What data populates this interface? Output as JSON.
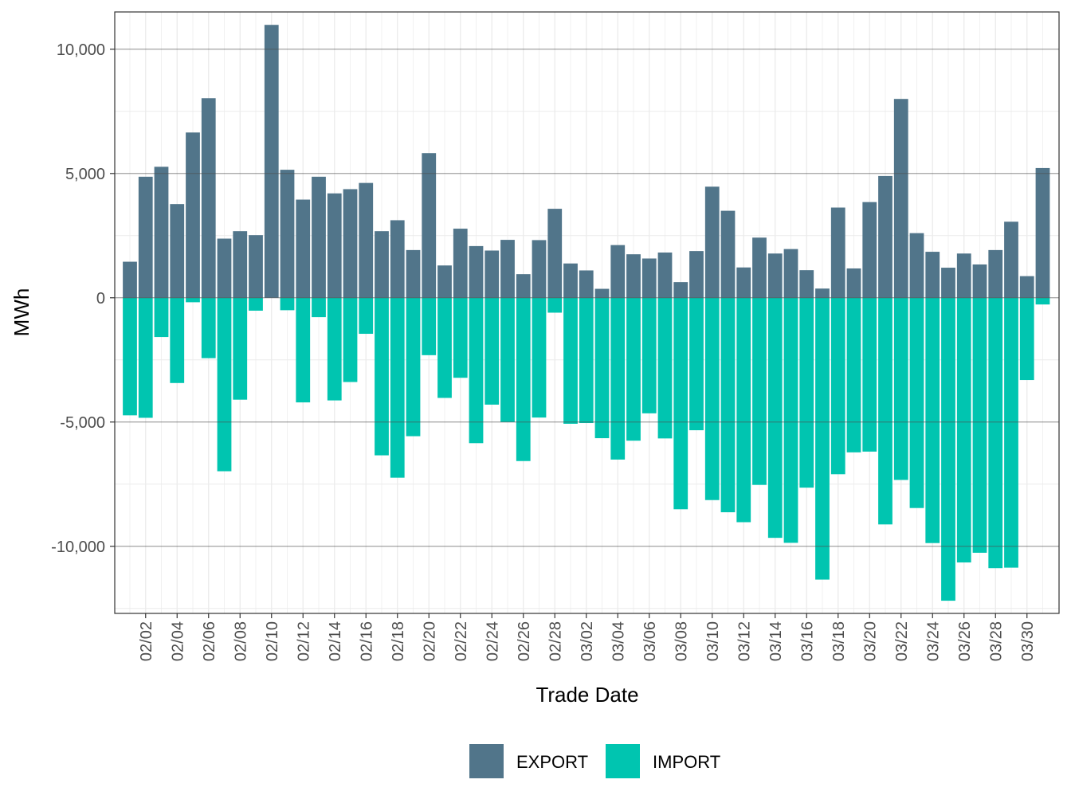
{
  "chart_data": {
    "type": "bar",
    "stacked": "diverging",
    "xlabel": "Trade Date",
    "ylabel": "MWh",
    "ylim": [
      -12700,
      11500
    ],
    "grid": true,
    "legend_position": "bottom",
    "y_ticks": [
      {
        "value": 10000,
        "label": "10,000"
      },
      {
        "value": 5000,
        "label": "5,000"
      },
      {
        "value": 0,
        "label": "0"
      },
      {
        "value": -5000,
        "label": "-5,000"
      },
      {
        "value": -10000,
        "label": "-10,000"
      }
    ],
    "x_tick_labels": [
      "02/02",
      "02/04",
      "02/06",
      "02/08",
      "02/10",
      "02/12",
      "02/14",
      "02/16",
      "02/18",
      "02/20",
      "02/22",
      "02/24",
      "02/26",
      "02/28",
      "03/02",
      "03/04",
      "03/06",
      "03/08",
      "03/10",
      "03/12",
      "03/14",
      "03/16",
      "03/18",
      "03/20",
      "03/22",
      "03/24",
      "03/26",
      "03/28",
      "03/30"
    ],
    "x": [
      "02/01",
      "02/02",
      "02/03",
      "02/04",
      "02/05",
      "02/06",
      "02/07",
      "02/08",
      "02/09",
      "02/10",
      "02/11",
      "02/12",
      "02/13",
      "02/14",
      "02/15",
      "02/16",
      "02/17",
      "02/18",
      "02/19",
      "02/20",
      "02/21",
      "02/22",
      "02/23",
      "02/24",
      "02/25",
      "02/26",
      "02/27",
      "02/28",
      "03/01",
      "03/02",
      "03/03",
      "03/04",
      "03/05",
      "03/06",
      "03/07",
      "03/08",
      "03/09",
      "03/10",
      "03/11",
      "03/12",
      "03/13",
      "03/14",
      "03/15",
      "03/16",
      "03/17",
      "03/18",
      "03/19",
      "03/20",
      "03/21",
      "03/22",
      "03/23",
      "03/24",
      "03/25",
      "03/26",
      "03/27",
      "03/28",
      "03/29",
      "03/30",
      "03/31"
    ],
    "series": [
      {
        "name": "EXPORT",
        "color": "#51758a",
        "values": [
          1450,
          4870,
          5270,
          3770,
          6650,
          8030,
          2380,
          2680,
          2520,
          10980,
          5150,
          3950,
          4870,
          4200,
          4370,
          4620,
          2680,
          3120,
          1920,
          5820,
          1300,
          2780,
          2080,
          1900,
          2330,
          950,
          2320,
          3580,
          1380,
          1100,
          360,
          2120,
          1750,
          1580,
          1820,
          630,
          1880,
          4470,
          3500,
          1220,
          2420,
          1780,
          1960,
          1110,
          370,
          3630,
          1180,
          3850,
          4900,
          8000,
          2600,
          1850,
          1210,
          1780,
          1340,
          1920,
          3060,
          870,
          5220
        ]
      },
      {
        "name": "IMPORT",
        "color": "#00c5b0",
        "values": [
          -4730,
          -4830,
          -1580,
          -3430,
          -180,
          -2430,
          -6980,
          -4100,
          -520,
          0,
          -500,
          -4210,
          -780,
          -4130,
          -3390,
          -1450,
          -6340,
          -7240,
          -5570,
          -2310,
          -4030,
          -3220,
          -5850,
          -4300,
          -5000,
          -6570,
          -4820,
          -600,
          -5070,
          -5040,
          -5650,
          -6510,
          -5750,
          -4650,
          -5660,
          -8510,
          -5330,
          -8140,
          -8630,
          -9030,
          -7530,
          -9660,
          -9860,
          -7640,
          -11340,
          -7100,
          -6220,
          -6190,
          -9120,
          -7330,
          -8460,
          -9870,
          -12190,
          -10650,
          -10260,
          -10880,
          -10860,
          -3310,
          -270
        ]
      }
    ]
  }
}
